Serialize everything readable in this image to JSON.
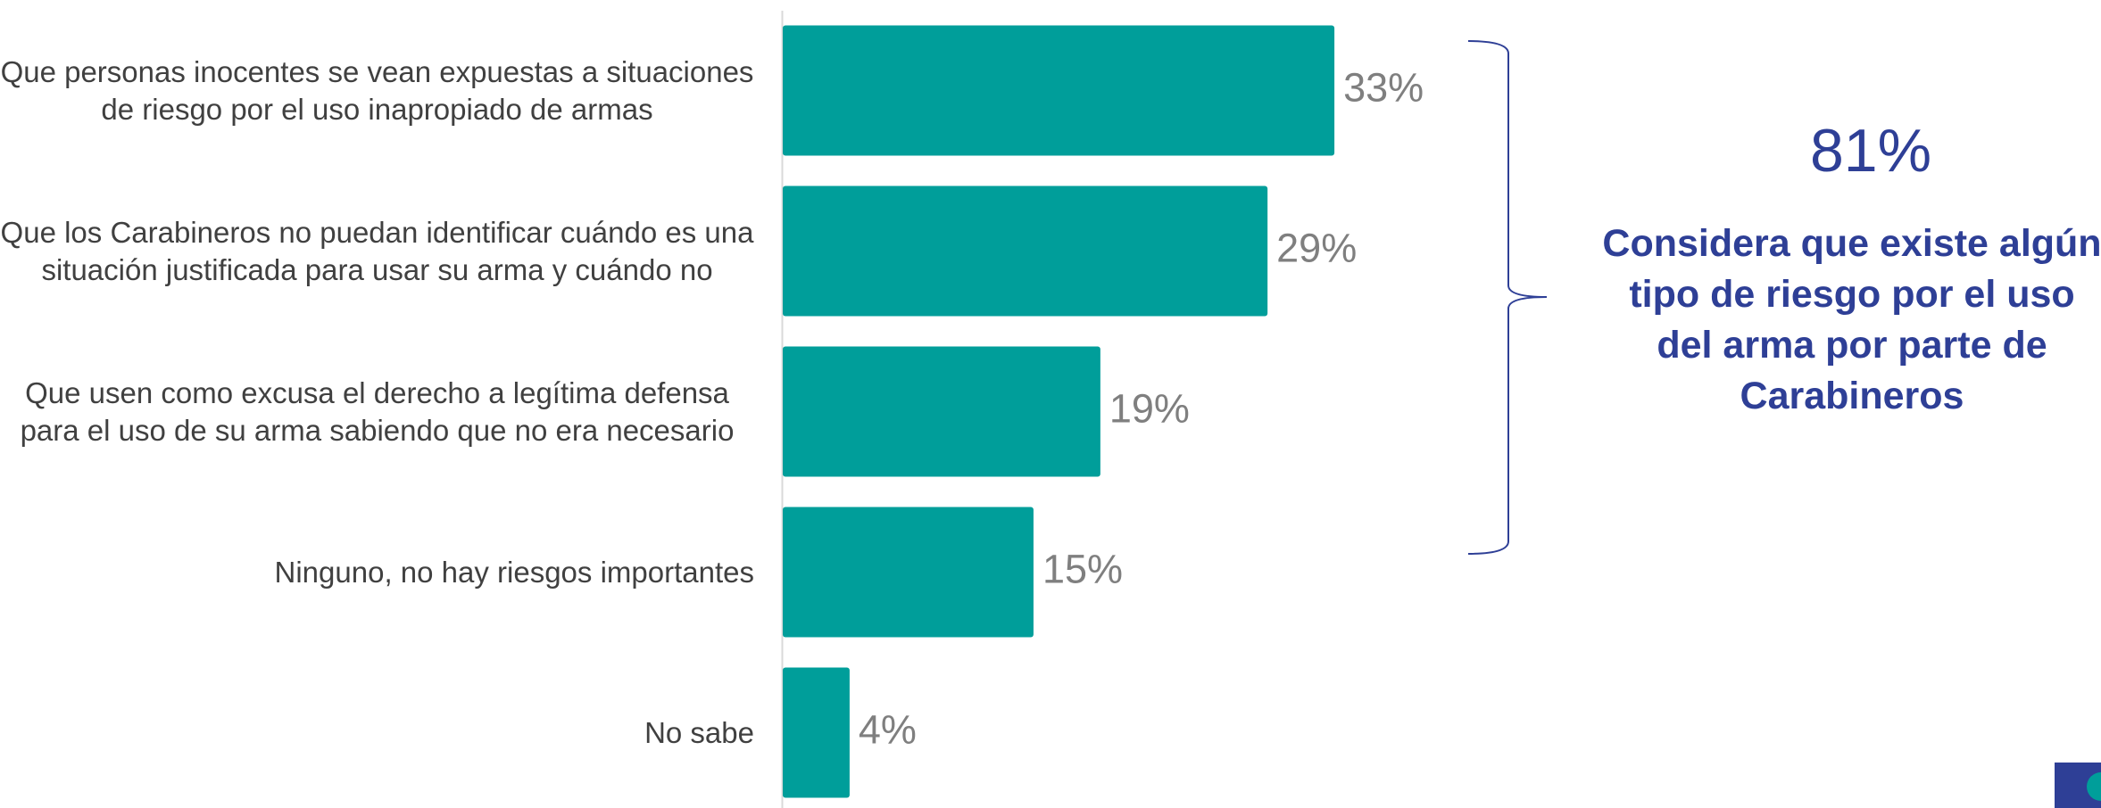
{
  "chart_data": {
    "type": "bar",
    "orientation": "horizontal",
    "categories": [
      "Que personas inocentes se vean expuestas a situaciones de riesgo por el uso inapropiado de armas",
      "Que los Carabineros no puedan identificar cuándo es una situación justificada para usar su arma y cuándo no",
      "Que usen como excusa el derecho a legítima defensa para el uso de su arma sabiendo que no era necesario",
      "Ninguno, no hay riesgos importantes",
      "No sabe"
    ],
    "values": [
      33,
      29,
      19,
      15,
      4
    ],
    "value_labels": [
      "33%",
      "29%",
      "19%",
      "15%",
      "4%"
    ],
    "color": "#009e9a",
    "annotations": [
      "81%",
      "Considera que existe algún tipo de riesgo por el uso del arma por parte de Carabineros"
    ]
  }
}
